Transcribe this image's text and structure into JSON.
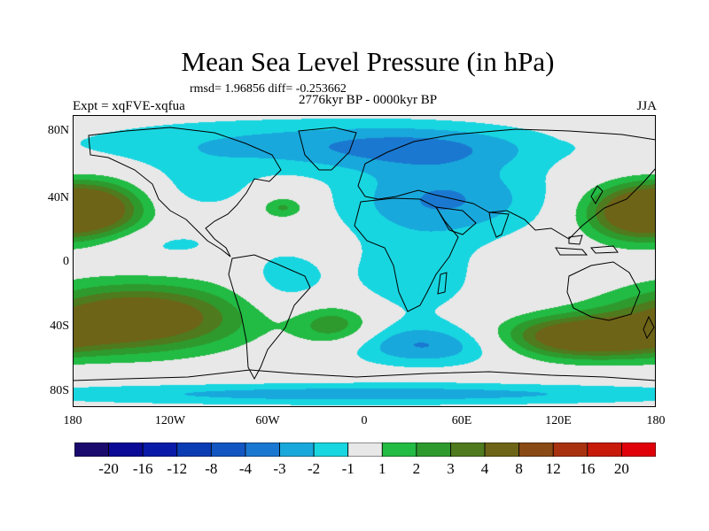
{
  "title": "Mean Sea Level Pressure (in hPa)",
  "stats": "rmsd= 1.96856 diff= -0.253662",
  "period": "2776kyr BP - 0000kyr BP",
  "expt": "Expt = xqFVE-xqfua",
  "season": "JJA",
  "lat_ticks": [
    "80N",
    "40N",
    "0",
    "40S",
    "80S"
  ],
  "lon_ticks": [
    "180",
    "120W",
    "60W",
    "0",
    "60E",
    "120E",
    "180"
  ],
  "colorbar": {
    "labels": [
      "-20",
      "-16",
      "-12",
      "-8",
      "-4",
      "-3",
      "-2",
      "-1",
      "1",
      "2",
      "3",
      "4",
      "8",
      "12",
      "16",
      "20"
    ],
    "colors": [
      "#1b0a6e",
      "#0a0a96",
      "#0a1aa8",
      "#0a3cb4",
      "#1256c2",
      "#1a78d0",
      "#19a8dc",
      "#18d6e0",
      "#e8e8e8",
      "#22bb44",
      "#2e9a2e",
      "#4f7a1e",
      "#6e6418",
      "#8a4a14",
      "#a8320f",
      "#c81a0a",
      "#e0000a"
    ]
  },
  "chart_data": {
    "type": "heatmap",
    "title": "Mean Sea Level Pressure (in hPa)",
    "units": "hPa",
    "x_range": [
      -180,
      180
    ],
    "y_range": [
      -90,
      90
    ],
    "contour_levels": [
      -20,
      -16,
      -12,
      -8,
      -4,
      -3,
      -2,
      -1,
      1,
      2,
      3,
      4,
      8,
      12,
      16,
      20
    ],
    "anomalies": [
      {
        "lon": -165,
        "lat": 32,
        "sx": 22,
        "sy": 12,
        "v": 5
      },
      {
        "lon": 165,
        "lat": 30,
        "sx": 22,
        "sy": 12,
        "v": 5
      },
      {
        "lon": -140,
        "lat": -35,
        "sx": 45,
        "sy": 14,
        "v": 6
      },
      {
        "lon": 135,
        "lat": -47,
        "sx": 38,
        "sy": 9,
        "v": 6
      },
      {
        "lon": -18,
        "lat": -40,
        "sx": 18,
        "sy": 9,
        "v": 3
      },
      {
        "lon": -50,
        "lat": 33,
        "sx": 10,
        "sy": 5,
        "v": 2.5
      },
      {
        "lon": 50,
        "lat": 38,
        "sx": 45,
        "sy": 16,
        "v": -3
      },
      {
        "lon": 40,
        "lat": -52,
        "sx": 38,
        "sy": 9,
        "v": -3
      },
      {
        "lon": -60,
        "lat": 72,
        "sx": 95,
        "sy": 12,
        "v": -2
      },
      {
        "lon": 40,
        "lat": 70,
        "sx": 55,
        "sy": 10,
        "v": -2
      },
      {
        "lon": 0,
        "lat": -82,
        "sx": 170,
        "sy": 5,
        "v": -2.5
      },
      {
        "lon": 30,
        "lat": -10,
        "sx": 35,
        "sy": 22,
        "v": -1.5
      },
      {
        "lon": -50,
        "lat": -12,
        "sx": 18,
        "sy": 14,
        "v": -1.5
      },
      {
        "lon": -120,
        "lat": 10,
        "sx": 30,
        "sy": 8,
        "v": -1.2
      },
      {
        "lon": -100,
        "lat": 45,
        "sx": 25,
        "sy": 12,
        "v": -1.3
      }
    ]
  }
}
